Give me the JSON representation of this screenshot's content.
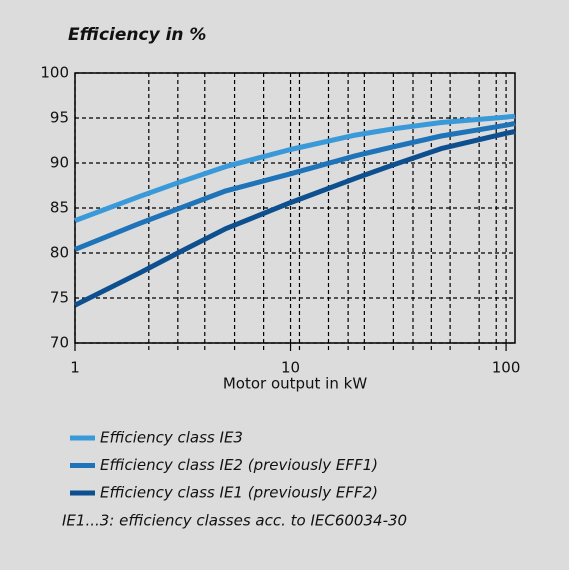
{
  "chart_data": {
    "type": "line",
    "title": "Efficiency in %",
    "xlabel": "Motor output in kW",
    "x": [
      1,
      2,
      3,
      5,
      10,
      20,
      30,
      50,
      100,
      110
    ],
    "series": [
      {
        "name": "Efficiency class IE3",
        "color": "#3a9ad9",
        "values": [
          83.6,
          86.3,
          87.8,
          89.6,
          91.5,
          93.1,
          93.8,
          94.5,
          95.1,
          95.2
        ]
      },
      {
        "name": "Efficiency class IE2 (previously EFF1)",
        "color": "#1f73b8",
        "values": [
          80.4,
          83.3,
          84.9,
          86.9,
          88.8,
          90.8,
          91.8,
          93.0,
          94.2,
          94.4
        ]
      },
      {
        "name": "Efficiency class IE1 (previously EFF2)",
        "color": "#0d4f8f",
        "values": [
          74.2,
          77.8,
          80.0,
          82.7,
          85.6,
          88.3,
          89.8,
          91.6,
          93.3,
          93.5
        ]
      }
    ],
    "xscale": "log",
    "xlim": [
      1,
      110
    ],
    "xticks": [
      1,
      10,
      100
    ],
    "xminor": [
      2.2,
      3,
      4,
      5.5,
      7.5,
      11,
      15,
      18.5,
      22,
      30,
      37,
      45,
      55,
      75,
      90
    ],
    "ylim": [
      70,
      100
    ],
    "yticks": [
      70,
      75,
      80,
      85,
      90,
      95,
      100
    ],
    "grid": true,
    "note": "IE1...3: efficiency classes acc. to IEC60034-30"
  }
}
